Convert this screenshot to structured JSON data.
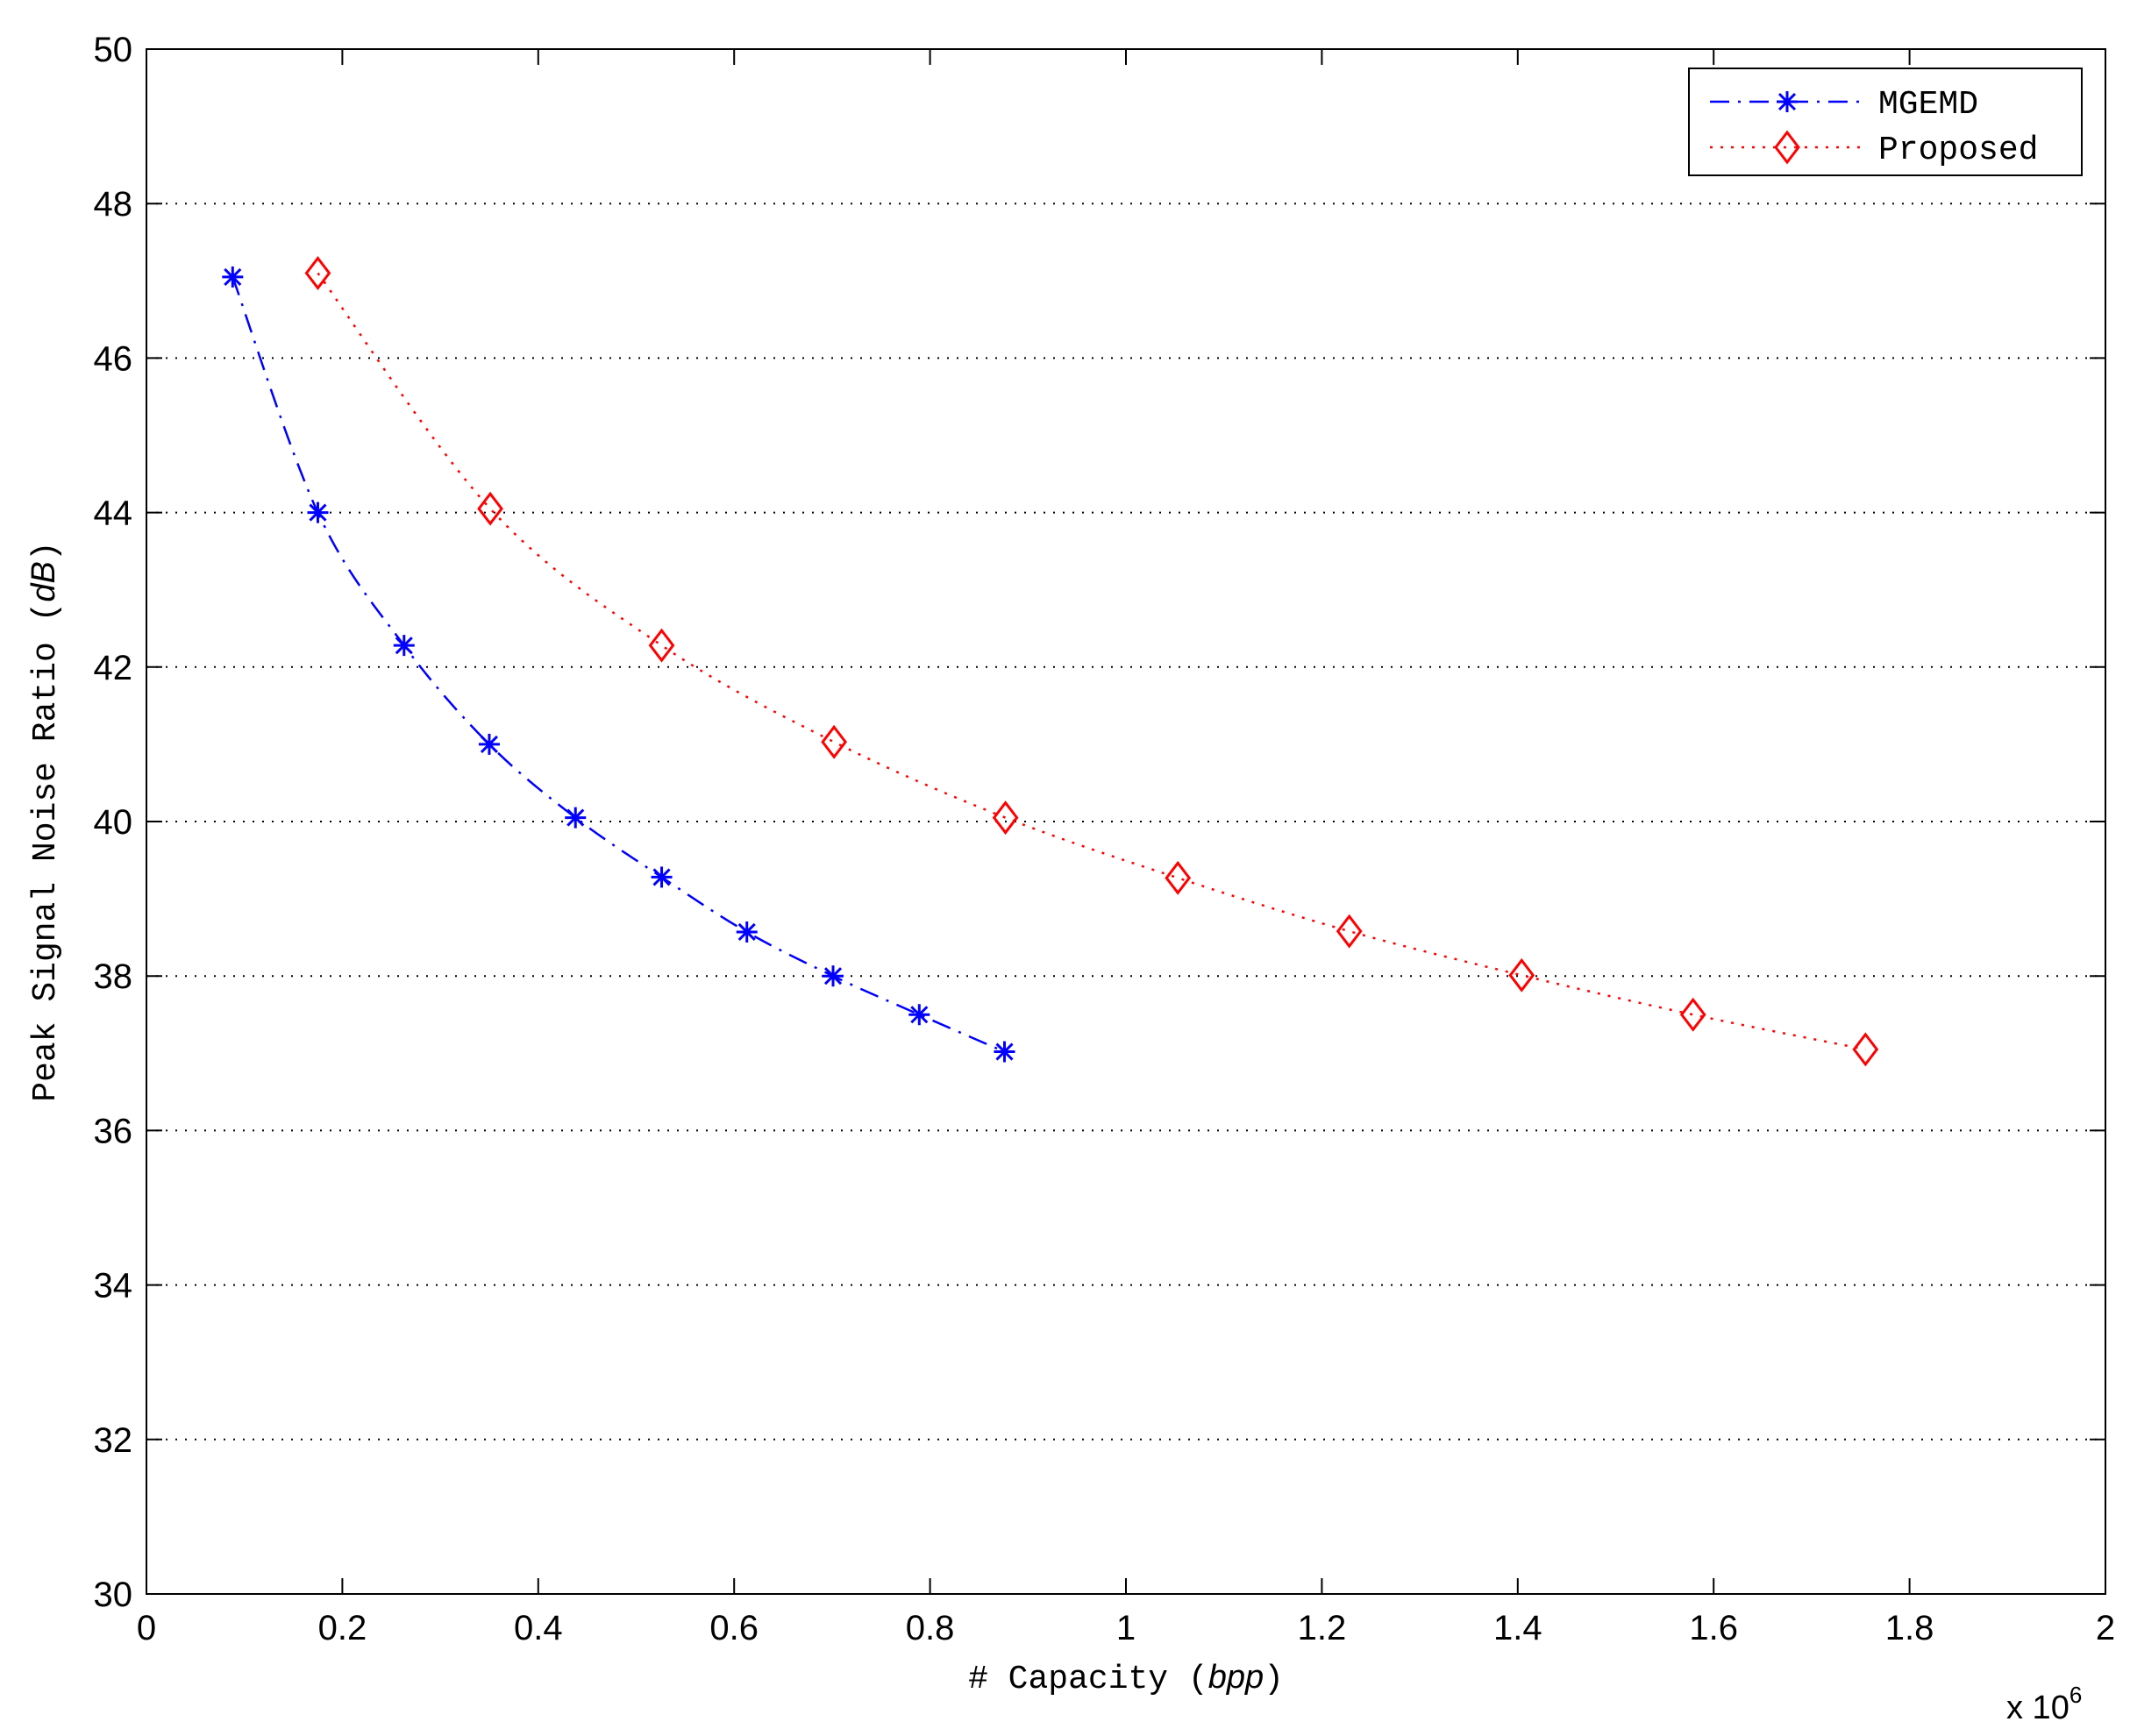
{
  "chart_data": {
    "type": "line",
    "xlabel": {
      "prefix": "# Capacity (",
      "unit": "bpp",
      "suffix": ")"
    },
    "ylabel": {
      "prefix": "Peak Signal Noise Ratio (",
      "unit": "dB",
      "suffix": ")"
    },
    "x_multiplier": {
      "base": "x 10",
      "exponent": "6"
    },
    "xlim": [
      0,
      2
    ],
    "ylim": [
      30,
      50
    ],
    "x_ticks": [
      0,
      0.2,
      0.4,
      0.6,
      0.8,
      1,
      1.2,
      1.4,
      1.6,
      1.8,
      2
    ],
    "x_tick_labels": [
      "0",
      "0.2",
      "0.4",
      "0.6",
      "0.8",
      "1",
      "1.2",
      "1.4",
      "1.6",
      "1.8",
      "2"
    ],
    "y_ticks": [
      30,
      32,
      34,
      36,
      38,
      40,
      42,
      44,
      46,
      48,
      50
    ],
    "y_tick_labels": [
      "30",
      "32",
      "34",
      "36",
      "38",
      "40",
      "42",
      "44",
      "46",
      "48",
      "50"
    ],
    "grid": "horizontal dotted",
    "legend_position": "top-right",
    "series": [
      {
        "name": "MGEMD",
        "color": "#0000ff",
        "line_style": "dash-dot",
        "marker": "asterisk",
        "x": [
          0.088,
          0.175,
          0.263,
          0.35,
          0.438,
          0.526,
          0.613,
          0.701,
          0.789,
          0.876
        ],
        "y": [
          47.05,
          44.0,
          42.28,
          41.0,
          40.05,
          39.28,
          38.57,
          38.0,
          37.5,
          37.02
        ]
      },
      {
        "name": "Proposed",
        "color": "#ff0000",
        "line_style": "dotted",
        "marker": "diamond",
        "x": [
          0.175,
          0.351,
          0.526,
          0.702,
          0.877,
          1.053,
          1.228,
          1.404,
          1.579,
          1.755
        ],
        "y": [
          47.1,
          44.05,
          42.28,
          41.03,
          40.05,
          39.27,
          38.58,
          38.01,
          37.5,
          37.05
        ]
      }
    ]
  }
}
